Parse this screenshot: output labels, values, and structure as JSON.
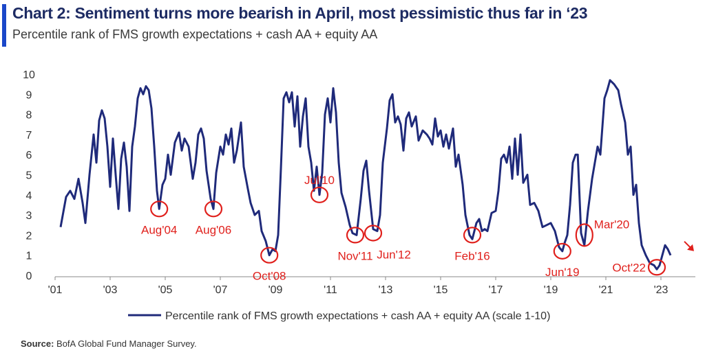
{
  "header": {
    "title": "Chart 2: Sentiment turns more bearish in April, most pessimistic thus far in ‘23",
    "subtitle": "Percentile rank of FMS growth expectations + cash AA + equity AA"
  },
  "footer": {
    "source_label": "Source:",
    "source_text": "BofA Global Fund Manager Survey."
  },
  "colors": {
    "line": "#1f2a7a",
    "annotation": "#e0201c",
    "title_accent": "#1a47c9",
    "axis": "#888888"
  },
  "chart_data": {
    "type": "line",
    "title": "",
    "xlabel": "",
    "ylabel": "",
    "xlim": [
      2001.0,
      2024.0
    ],
    "ylim": [
      0,
      10
    ],
    "yticks": [
      0,
      1,
      2,
      3,
      4,
      5,
      6,
      7,
      8,
      9,
      10
    ],
    "xticks": [
      {
        "value": 2001,
        "label": "'01"
      },
      {
        "value": 2003,
        "label": "'03"
      },
      {
        "value": 2005,
        "label": "'05"
      },
      {
        "value": 2007,
        "label": "'07"
      },
      {
        "value": 2009,
        "label": "'09"
      },
      {
        "value": 2011,
        "label": "'11"
      },
      {
        "value": 2013,
        "label": "'13"
      },
      {
        "value": 2015,
        "label": "'15"
      },
      {
        "value": 2017,
        "label": "'17"
      },
      {
        "value": 2019,
        "label": "'19"
      },
      {
        "value": 2021,
        "label": "'21"
      },
      {
        "value": 2023,
        "label": "'23"
      }
    ],
    "grid": false,
    "legend_position": "bottom",
    "series": [
      {
        "name": "Percentile rank of FMS growth expectations + cash AA + equity AA (scale 1-10)",
        "points": [
          [
            2001.2,
            2.4
          ],
          [
            2001.4,
            3.9
          ],
          [
            2001.55,
            4.2
          ],
          [
            2001.7,
            3.8
          ],
          [
            2001.85,
            4.8
          ],
          [
            2002.0,
            3.6
          ],
          [
            2002.1,
            2.6
          ],
          [
            2002.25,
            5.0
          ],
          [
            2002.4,
            7.0
          ],
          [
            2002.5,
            5.6
          ],
          [
            2002.6,
            7.7
          ],
          [
            2002.7,
            8.2
          ],
          [
            2002.8,
            7.8
          ],
          [
            2002.9,
            6.4
          ],
          [
            2003.0,
            4.4
          ],
          [
            2003.1,
            6.8
          ],
          [
            2003.2,
            5.0
          ],
          [
            2003.3,
            3.3
          ],
          [
            2003.4,
            5.8
          ],
          [
            2003.5,
            6.6
          ],
          [
            2003.6,
            5.4
          ],
          [
            2003.7,
            3.2
          ],
          [
            2003.8,
            6.4
          ],
          [
            2003.9,
            7.4
          ],
          [
            2004.0,
            8.8
          ],
          [
            2004.1,
            9.3
          ],
          [
            2004.2,
            9.0
          ],
          [
            2004.3,
            9.4
          ],
          [
            2004.4,
            9.2
          ],
          [
            2004.5,
            8.3
          ],
          [
            2004.6,
            6.4
          ],
          [
            2004.7,
            4.2
          ],
          [
            2004.78,
            3.3
          ],
          [
            2004.9,
            4.5
          ],
          [
            2005.0,
            4.8
          ],
          [
            2005.1,
            6.0
          ],
          [
            2005.2,
            5.0
          ],
          [
            2005.35,
            6.6
          ],
          [
            2005.5,
            7.1
          ],
          [
            2005.6,
            6.2
          ],
          [
            2005.7,
            6.8
          ],
          [
            2005.85,
            6.4
          ],
          [
            2006.0,
            4.8
          ],
          [
            2006.1,
            5.6
          ],
          [
            2006.2,
            7.0
          ],
          [
            2006.3,
            7.3
          ],
          [
            2006.4,
            6.8
          ],
          [
            2006.5,
            5.2
          ],
          [
            2006.65,
            3.8
          ],
          [
            2006.75,
            3.3
          ],
          [
            2006.85,
            5.1
          ],
          [
            2007.0,
            6.4
          ],
          [
            2007.1,
            6.0
          ],
          [
            2007.2,
            7.0
          ],
          [
            2007.3,
            6.5
          ],
          [
            2007.4,
            7.3
          ],
          [
            2007.5,
            5.6
          ],
          [
            2007.6,
            6.2
          ],
          [
            2007.75,
            7.6
          ],
          [
            2007.85,
            5.4
          ],
          [
            2008.0,
            4.3
          ],
          [
            2008.1,
            3.6
          ],
          [
            2008.25,
            3.0
          ],
          [
            2008.4,
            3.2
          ],
          [
            2008.5,
            2.2
          ],
          [
            2008.65,
            1.7
          ],
          [
            2008.78,
            1.0
          ],
          [
            2008.9,
            1.3
          ],
          [
            2009.0,
            1.2
          ],
          [
            2009.1,
            2.0
          ],
          [
            2009.2,
            5.3
          ],
          [
            2009.3,
            8.8
          ],
          [
            2009.4,
            9.1
          ],
          [
            2009.5,
            8.6
          ],
          [
            2009.6,
            9.1
          ],
          [
            2009.7,
            7.4
          ],
          [
            2009.8,
            8.9
          ],
          [
            2009.9,
            6.4
          ],
          [
            2010.0,
            7.9
          ],
          [
            2010.1,
            8.8
          ],
          [
            2010.2,
            6.4
          ],
          [
            2010.3,
            5.6
          ],
          [
            2010.4,
            4.2
          ],
          [
            2010.5,
            5.4
          ],
          [
            2010.6,
            4.0
          ],
          [
            2010.7,
            5.1
          ],
          [
            2010.8,
            8.0
          ],
          [
            2010.9,
            8.8
          ],
          [
            2011.0,
            7.6
          ],
          [
            2011.1,
            9.3
          ],
          [
            2011.2,
            8.1
          ],
          [
            2011.3,
            5.6
          ],
          [
            2011.4,
            4.1
          ],
          [
            2011.55,
            3.4
          ],
          [
            2011.7,
            2.5
          ],
          [
            2011.8,
            2.1
          ],
          [
            2011.95,
            2.0
          ],
          [
            2012.1,
            3.8
          ],
          [
            2012.2,
            5.2
          ],
          [
            2012.3,
            5.7
          ],
          [
            2012.4,
            4.2
          ],
          [
            2012.55,
            2.3
          ],
          [
            2012.7,
            2.2
          ],
          [
            2012.8,
            3.0
          ],
          [
            2012.9,
            5.6
          ],
          [
            2013.05,
            7.3
          ],
          [
            2013.15,
            8.7
          ],
          [
            2013.25,
            9.0
          ],
          [
            2013.35,
            7.6
          ],
          [
            2013.45,
            7.9
          ],
          [
            2013.55,
            7.5
          ],
          [
            2013.65,
            6.2
          ],
          [
            2013.75,
            7.8
          ],
          [
            2013.85,
            8.1
          ],
          [
            2013.95,
            7.4
          ],
          [
            2014.1,
            7.9
          ],
          [
            2014.2,
            6.7
          ],
          [
            2014.35,
            7.2
          ],
          [
            2014.5,
            7.0
          ],
          [
            2014.6,
            6.8
          ],
          [
            2014.7,
            6.5
          ],
          [
            2014.8,
            7.8
          ],
          [
            2014.9,
            6.9
          ],
          [
            2015.0,
            7.2
          ],
          [
            2015.1,
            6.4
          ],
          [
            2015.2,
            7.0
          ],
          [
            2015.3,
            6.3
          ],
          [
            2015.45,
            7.3
          ],
          [
            2015.55,
            5.4
          ],
          [
            2015.65,
            6.0
          ],
          [
            2015.8,
            4.5
          ],
          [
            2015.9,
            3.0
          ],
          [
            2016.05,
            2.0
          ],
          [
            2016.15,
            1.8
          ],
          [
            2016.3,
            2.6
          ],
          [
            2016.4,
            2.8
          ],
          [
            2016.5,
            2.2
          ],
          [
            2016.6,
            2.3
          ],
          [
            2016.7,
            2.2
          ],
          [
            2016.85,
            3.1
          ],
          [
            2017.0,
            3.2
          ],
          [
            2017.1,
            4.2
          ],
          [
            2017.2,
            5.8
          ],
          [
            2017.3,
            6.0
          ],
          [
            2017.4,
            5.6
          ],
          [
            2017.5,
            6.4
          ],
          [
            2017.6,
            4.8
          ],
          [
            2017.7,
            6.8
          ],
          [
            2017.8,
            5.0
          ],
          [
            2017.9,
            7.0
          ],
          [
            2018.0,
            4.6
          ],
          [
            2018.15,
            5.0
          ],
          [
            2018.25,
            3.5
          ],
          [
            2018.4,
            3.6
          ],
          [
            2018.55,
            3.2
          ],
          [
            2018.7,
            2.4
          ],
          [
            2018.85,
            2.5
          ],
          [
            2019.0,
            2.6
          ],
          [
            2019.15,
            2.2
          ],
          [
            2019.3,
            1.4
          ],
          [
            2019.42,
            1.2
          ],
          [
            2019.5,
            1.6
          ],
          [
            2019.6,
            2.0
          ],
          [
            2019.7,
            3.5
          ],
          [
            2019.8,
            5.6
          ],
          [
            2019.9,
            6.0
          ],
          [
            2019.98,
            6.0
          ],
          [
            2020.1,
            2.1
          ],
          [
            2020.22,
            1.5
          ],
          [
            2020.35,
            3.2
          ],
          [
            2020.5,
            4.8
          ],
          [
            2020.6,
            5.6
          ],
          [
            2020.7,
            6.4
          ],
          [
            2020.8,
            6.0
          ],
          [
            2020.95,
            8.8
          ],
          [
            2021.05,
            9.2
          ],
          [
            2021.15,
            9.7
          ],
          [
            2021.3,
            9.5
          ],
          [
            2021.45,
            9.2
          ],
          [
            2021.55,
            8.5
          ],
          [
            2021.7,
            7.6
          ],
          [
            2021.8,
            6.0
          ],
          [
            2021.9,
            6.4
          ],
          [
            2022.0,
            4.0
          ],
          [
            2022.1,
            4.5
          ],
          [
            2022.2,
            2.6
          ],
          [
            2022.3,
            1.5
          ],
          [
            2022.45,
            1.0
          ],
          [
            2022.6,
            0.6
          ],
          [
            2022.75,
            0.5
          ],
          [
            2022.85,
            0.3
          ],
          [
            2022.95,
            0.5
          ],
          [
            2023.05,
            1.0
          ],
          [
            2023.15,
            1.5
          ],
          [
            2023.25,
            1.3
          ],
          [
            2023.35,
            1.0
          ]
        ]
      }
    ],
    "annotations": [
      {
        "label": "Aug'04",
        "x": 2004.78,
        "y": 3.3,
        "side": "below"
      },
      {
        "label": "Aug'06",
        "x": 2006.75,
        "y": 3.3,
        "side": "below"
      },
      {
        "label": "Oct'08",
        "x": 2008.78,
        "y": 1.0,
        "side": "below"
      },
      {
        "label": "Jul'10",
        "x": 2010.6,
        "y": 4.0,
        "side": "above"
      },
      {
        "label": "Nov'11",
        "x": 2011.9,
        "y": 2.0,
        "side": "below"
      },
      {
        "label": "Jun'12",
        "x": 2012.55,
        "y": 2.1,
        "side": "below-right"
      },
      {
        "label": "Feb'16",
        "x": 2016.15,
        "y": 2.0,
        "side": "below"
      },
      {
        "label": "Jun'19",
        "x": 2019.42,
        "y": 1.2,
        "side": "below"
      },
      {
        "label": "Mar'20",
        "x": 2020.22,
        "y": 2.0,
        "side": "right"
      },
      {
        "label": "Oct'22",
        "x": 2022.85,
        "y": 0.4,
        "side": "left"
      }
    ]
  }
}
